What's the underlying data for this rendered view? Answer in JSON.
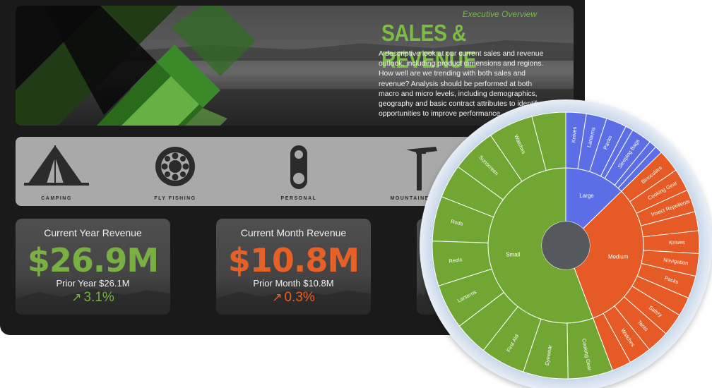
{
  "hero": {
    "kicker": "Executive Overview",
    "title": "SALES & REVENUE",
    "description": "A descriptive look at our current sales and revenue outlook, including product dimensions and regions. How well are we trending with both sales and revenue? Analysis should be performed at both macro and  micro levels, including demographics, geography and basic contract attributes to identify opportunities to improve performance."
  },
  "categories": [
    {
      "label": "CAMPING",
      "icon": "tent-icon"
    },
    {
      "label": "FLY FISHING",
      "icon": "fishing-reel-icon"
    },
    {
      "label": "PERSONAL",
      "icon": "carabiner-icon"
    },
    {
      "label": "MOUNTAINEERING",
      "icon": "ice-axe-icon"
    }
  ],
  "kpis": {
    "year": {
      "title": "Current Year Revenue",
      "value": "$26.9M",
      "prior": "Prior Year $26.1M",
      "change": "3.1%",
      "trend": "up",
      "color": "#78b042"
    },
    "month": {
      "title": "Current Month Revenue",
      "value": "$10.8M",
      "prior": "Prior Month $10.8M",
      "change": "0.3%",
      "trend": "up",
      "color": "#e76026"
    }
  },
  "sunburst": {
    "colors": {
      "Large": "#5b6ee6",
      "Medium": "#e55a25",
      "Small": "#71a632",
      "center": "#55595e"
    },
    "inner": [
      {
        "name": "Large",
        "share": 0.127
      },
      {
        "name": "Medium",
        "share": 0.316
      },
      {
        "name": "Small",
        "share": 0.557
      }
    ],
    "outer": {
      "Large": [
        "Knives",
        "Lanterns",
        "Packs",
        "Sleeping Bags"
      ],
      "Medium": [
        "Binoculars",
        "Cooking Gear",
        "Insect Repellents",
        "Knives",
        "Navigation",
        "Packs",
        "Safety",
        "Tents",
        "Watches"
      ],
      "Small": [
        "Cooking Gear",
        "Eyewear",
        "First Aid",
        "Lanterns",
        "Reels",
        "Rods",
        "Sunscreen",
        "Watches"
      ]
    }
  }
}
